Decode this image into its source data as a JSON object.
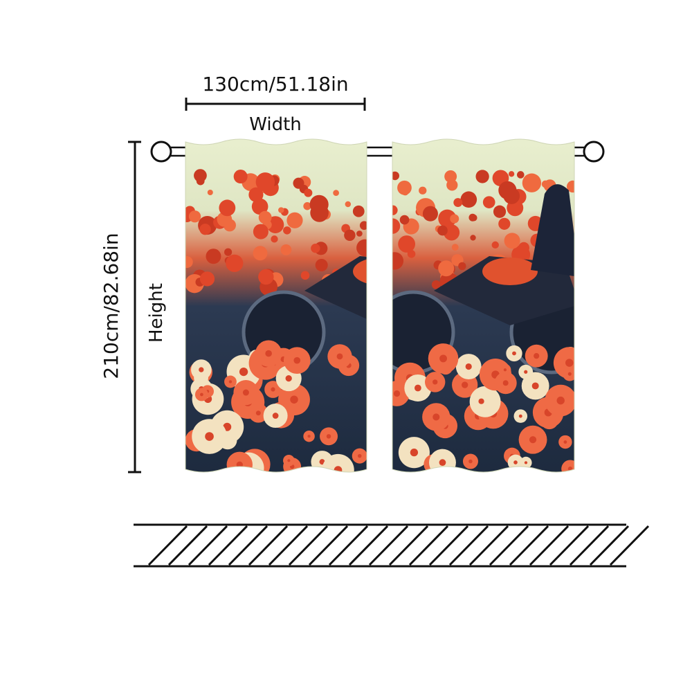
{
  "width": {
    "label": "130cm/51.18in",
    "caption": "Width"
  },
  "height": {
    "label": "210cm/82.68in",
    "caption": "Height"
  }
}
